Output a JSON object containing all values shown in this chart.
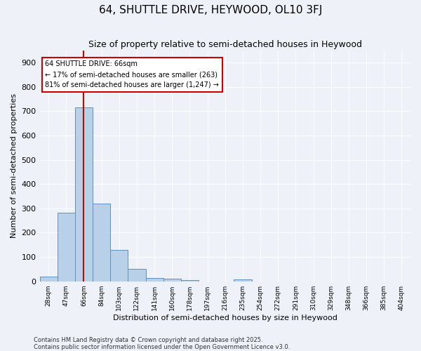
{
  "title": "64, SHUTTLE DRIVE, HEYWOOD, OL10 3FJ",
  "subtitle": "Size of property relative to semi-detached houses in Heywood",
  "xlabel": "Distribution of semi-detached houses by size in Heywood",
  "ylabel": "Number of semi-detached properties",
  "bar_values": [
    19,
    283,
    716,
    321,
    129,
    52,
    15,
    11,
    6,
    0,
    0,
    8,
    0,
    0,
    0,
    0,
    0,
    0,
    0,
    0,
    0
  ],
  "bar_labels": [
    "28sqm",
    "47sqm",
    "66sqm",
    "84sqm",
    "103sqm",
    "122sqm",
    "141sqm",
    "160sqm",
    "178sqm",
    "197sqm",
    "216sqm",
    "235sqm",
    "254sqm",
    "272sqm",
    "291sqm",
    "310sqm",
    "329sqm",
    "348sqm",
    "366sqm",
    "385sqm",
    "404sqm"
  ],
  "bar_color": "#b8d0e8",
  "bar_edge_color": "#6090c0",
  "vline_x_index": 2,
  "vline_color": "#cc0000",
  "annotation_title": "64 SHUTTLE DRIVE: 66sqm",
  "annotation_line1": "← 17% of semi-detached houses are smaller (263)",
  "annotation_line2": "81% of semi-detached houses are larger (1,247) →",
  "annotation_box_edge_color": "#cc0000",
  "ylim": [
    0,
    950
  ],
  "yticks": [
    0,
    100,
    200,
    300,
    400,
    500,
    600,
    700,
    800,
    900
  ],
  "footnote1": "Contains HM Land Registry data © Crown copyright and database right 2025.",
  "footnote2": "Contains public sector information licensed under the Open Government Licence v3.0.",
  "bg_color": "#eef2f8",
  "plot_bg_color": "#eef2f8",
  "grid_color": "#ffffff",
  "title_fontsize": 11,
  "subtitle_fontsize": 9,
  "xlabel_fontsize": 8,
  "ylabel_fontsize": 8,
  "xtick_fontsize": 6.5,
  "ytick_fontsize": 8,
  "footnote_fontsize": 6
}
